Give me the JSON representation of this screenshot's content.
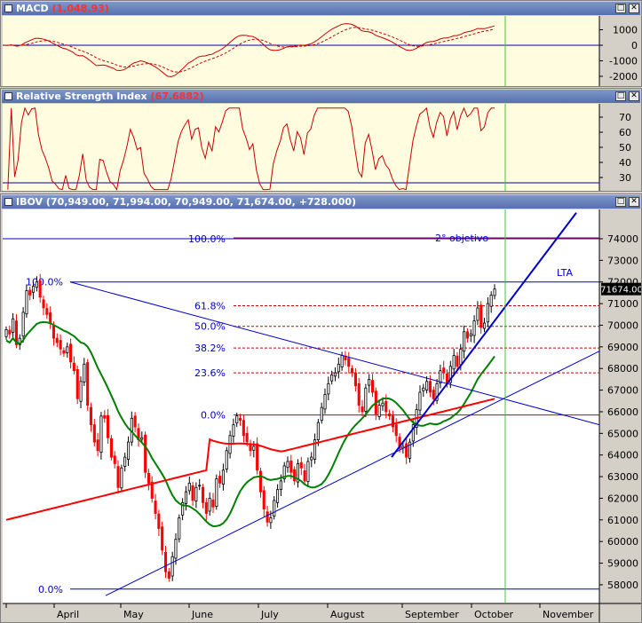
{
  "macd": {
    "label": "MACD",
    "value": "(1,048.93)",
    "ticks": [
      "1000",
      "0",
      "-1000",
      "-2000"
    ],
    "tick_values": [
      1000,
      0,
      -1000,
      -2000
    ]
  },
  "rsi": {
    "label": "Relative Strength Index",
    "value": "(67.6882)",
    "ticks": [
      "70",
      "60",
      "50",
      "40",
      "30"
    ],
    "tick_values": [
      70,
      60,
      50,
      40,
      30
    ]
  },
  "ibov": {
    "label": "IBOV",
    "ohlc": "(70,949.00, 71,994.00, 70,949.00, 71,674.00, +728.000)",
    "last_price_label": "71674.00"
  },
  "buttons": {
    "restore": "□",
    "close": "✕"
  },
  "colors": {
    "panel_bg": "#fffce0",
    "price_up": "#000000",
    "price_down": "#ff0000",
    "ma_short": "#008000",
    "ma_long": "#ff0000",
    "trendline": "#0000cc",
    "fib_line": "#cc0000",
    "cursor_line": "#40c040"
  },
  "annotations": {
    "second_target": "2° objetivo",
    "lta": "LTA",
    "fib_top": "100.0%",
    "fib_0": "0.0%"
  },
  "chart_data": {
    "type": "candlestick",
    "x_axis_months": [
      "April",
      "May",
      "June",
      "July",
      "August",
      "September",
      "October",
      "November"
    ],
    "y_axis": {
      "ticks": [
        58000,
        59000,
        60000,
        61000,
        62000,
        63000,
        64000,
        65000,
        66000,
        67000,
        68000,
        69000,
        70000,
        71000,
        72000,
        73000,
        74000
      ],
      "ylim": [
        57500,
        75000
      ]
    },
    "last_close": 71674,
    "fibonacci_retracement": [
      {
        "label": "100.0%",
        "value": 72000
      },
      {
        "label": "61.8%",
        "value": 70900
      },
      {
        "label": "50.0%",
        "value": 69950
      },
      {
        "label": "38.2%",
        "value": 68950
      },
      {
        "label": "23.6%",
        "value": 67800
      },
      {
        "label": "0.0%",
        "value": 65850
      }
    ],
    "fib_lower": [
      {
        "label": "100.0%",
        "value": 72000
      },
      {
        "label": "0.0%",
        "value": 57800
      }
    ],
    "fib_extension": [
      {
        "label": "100.0%",
        "value": 74000
      }
    ],
    "annotations": [
      "2° objetivo",
      "LTA"
    ],
    "close_series": [
      69800,
      69600,
      70300,
      69100,
      69400,
      70600,
      71600,
      71400,
      71800,
      72000,
      71300,
      70800,
      70500,
      70100,
      69400,
      69200,
      68900,
      68700,
      69000,
      68300,
      67900,
      66600,
      67400,
      68200,
      66300,
      65400,
      64600,
      64200,
      65800,
      65700,
      64800,
      63900,
      63600,
      62500,
      63400,
      63900,
      64600,
      65700,
      65300,
      64700,
      64800,
      63200,
      62700,
      62000,
      61300,
      60600,
      59600,
      58600,
      58300,
      59300,
      60100,
      61100,
      61800,
      62300,
      62700,
      61900,
      62500,
      62600,
      61800,
      61300,
      62000,
      61600,
      62900,
      62700,
      63300,
      64200,
      64900,
      65400,
      65800,
      65600,
      64900,
      64600,
      64200,
      64400,
      63300,
      62300,
      61500,
      60900,
      61100,
      61900,
      62400,
      62800,
      63500,
      63700,
      63200,
      62800,
      63600,
      63400,
      62800,
      63700,
      63900,
      64700,
      65500,
      66200,
      66800,
      67300,
      67700,
      67800,
      68200,
      68600,
      68400,
      68100,
      67800,
      67200,
      66300,
      66000,
      67100,
      67500,
      66900,
      65900,
      66300,
      66400,
      66000,
      65800,
      65300,
      64900,
      64300,
      64400,
      63900,
      64600,
      65400,
      66100,
      66900,
      67100,
      67400,
      66900,
      66600,
      67300,
      67900,
      67800,
      67300,
      68100,
      68600,
      68100,
      68900,
      69700,
      69400,
      69600,
      70200,
      70800,
      69900,
      70100,
      71000,
      71400,
      71674
    ]
  }
}
